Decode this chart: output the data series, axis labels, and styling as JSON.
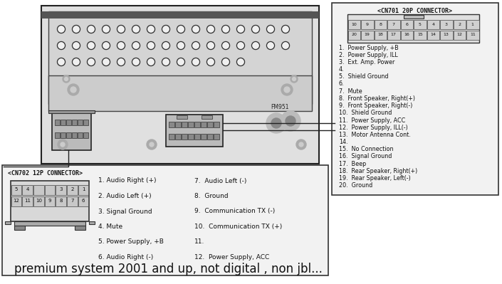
{
  "bg_color": "#ffffff",
  "footer_text": "premium system 2001 and up, not digital , non jbl...",
  "cn701_title": "<CN701 20P CONNECTOR>",
  "cn701_pins_row1": [
    "10",
    "9",
    "8",
    "7",
    "6",
    "5",
    "4",
    "3",
    "2",
    "1"
  ],
  "cn701_pins_row2": [
    "20",
    "19",
    "18",
    "17",
    "16",
    "15",
    "14",
    "13",
    "12",
    "11"
  ],
  "cn701_wires": [
    "1.  Power Supply, +B",
    "2.  Power Supply, ILL",
    "3.  Ext. Amp. Power",
    "4.",
    "5.  Shield Ground",
    "6.",
    "7.  Mute",
    "8.  Front Speaker, Right(+)",
    "9.  Front Speaker, Right(-)",
    "10.  Shield Ground",
    "11.  Power Supply, ACC",
    "12.  Power Supply, ILL(-)",
    "13.  Motor Antenna Cont.",
    "14.",
    "15.  No Connection",
    "16.  Signal Ground",
    "17.  Beep",
    "18.  Rear Speaker, Right(+)",
    "19.  Rear Speaker, Left(-)",
    "20.  Ground"
  ],
  "cn702_title": "<CN702 12P CONNECTOR>",
  "cn702_pins_row1": [
    "5",
    "4",
    "",
    "",
    "3",
    "2",
    "1"
  ],
  "cn702_pins_row2": [
    "12",
    "11",
    "10",
    "9",
    "8",
    "7",
    "6"
  ],
  "cn702_wires_col1": [
    "1. Audio Right (+)",
    "2. Audio Left (+)",
    "3. Signal Ground",
    "4. Mute",
    "5. Power Supply, +B",
    "6. Audio Right (-)"
  ],
  "cn702_wires_col2": [
    "7.  Audio Left (-)",
    "8.  Ground",
    "9.  Communication TX (-)",
    "10.  Communication TX (+)",
    "11.",
    "12.  Power Supply, ACC"
  ]
}
